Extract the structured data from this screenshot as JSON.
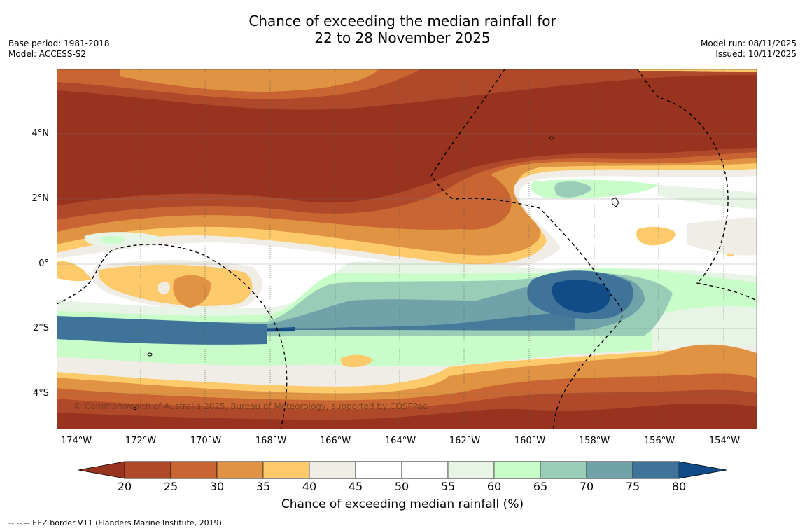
{
  "title": {
    "line1": "Chance of exceeding the median rainfall for",
    "line2": "22 to 28 November 2025"
  },
  "meta": {
    "base_period": "Base period: 1981-2018",
    "model": "Model: ACCESS-S2",
    "model_run": "Model run: 08/11/2025",
    "issued": "Issued: 10/11/2025"
  },
  "axes": {
    "lat_labels": [
      "4°N",
      "2°N",
      "0°",
      "2°S",
      "4°S"
    ],
    "lon_labels": [
      "174°W",
      "172°W",
      "170°W",
      "168°W",
      "166°W",
      "164°W",
      "162°W",
      "160°W",
      "158°W",
      "156°W",
      "154°W"
    ]
  },
  "colorbar": {
    "ticks": [
      "20",
      "25",
      "30",
      "35",
      "40",
      "45",
      "50",
      "55",
      "60",
      "65",
      "70",
      "75",
      "80"
    ],
    "colors": [
      "#983320",
      "#b0492a",
      "#c96533",
      "#e09443",
      "#fdca6b",
      "#f0ede6",
      "#ffffff",
      "#ffffff",
      "#e8f4e6",
      "#c8fcc8",
      "#9acdb8",
      "#6fa3a9",
      "#3f7399",
      "#124c88"
    ],
    "title": "Chance of exceeding median rainfall (%)"
  },
  "copyright": "© Commonwealth of Australia 2025, Bureau of Meteorology, supported by COSPPac",
  "footer": "--  --  -- EEZ border V11 (Flanders Marine Institute, 2019)."
}
